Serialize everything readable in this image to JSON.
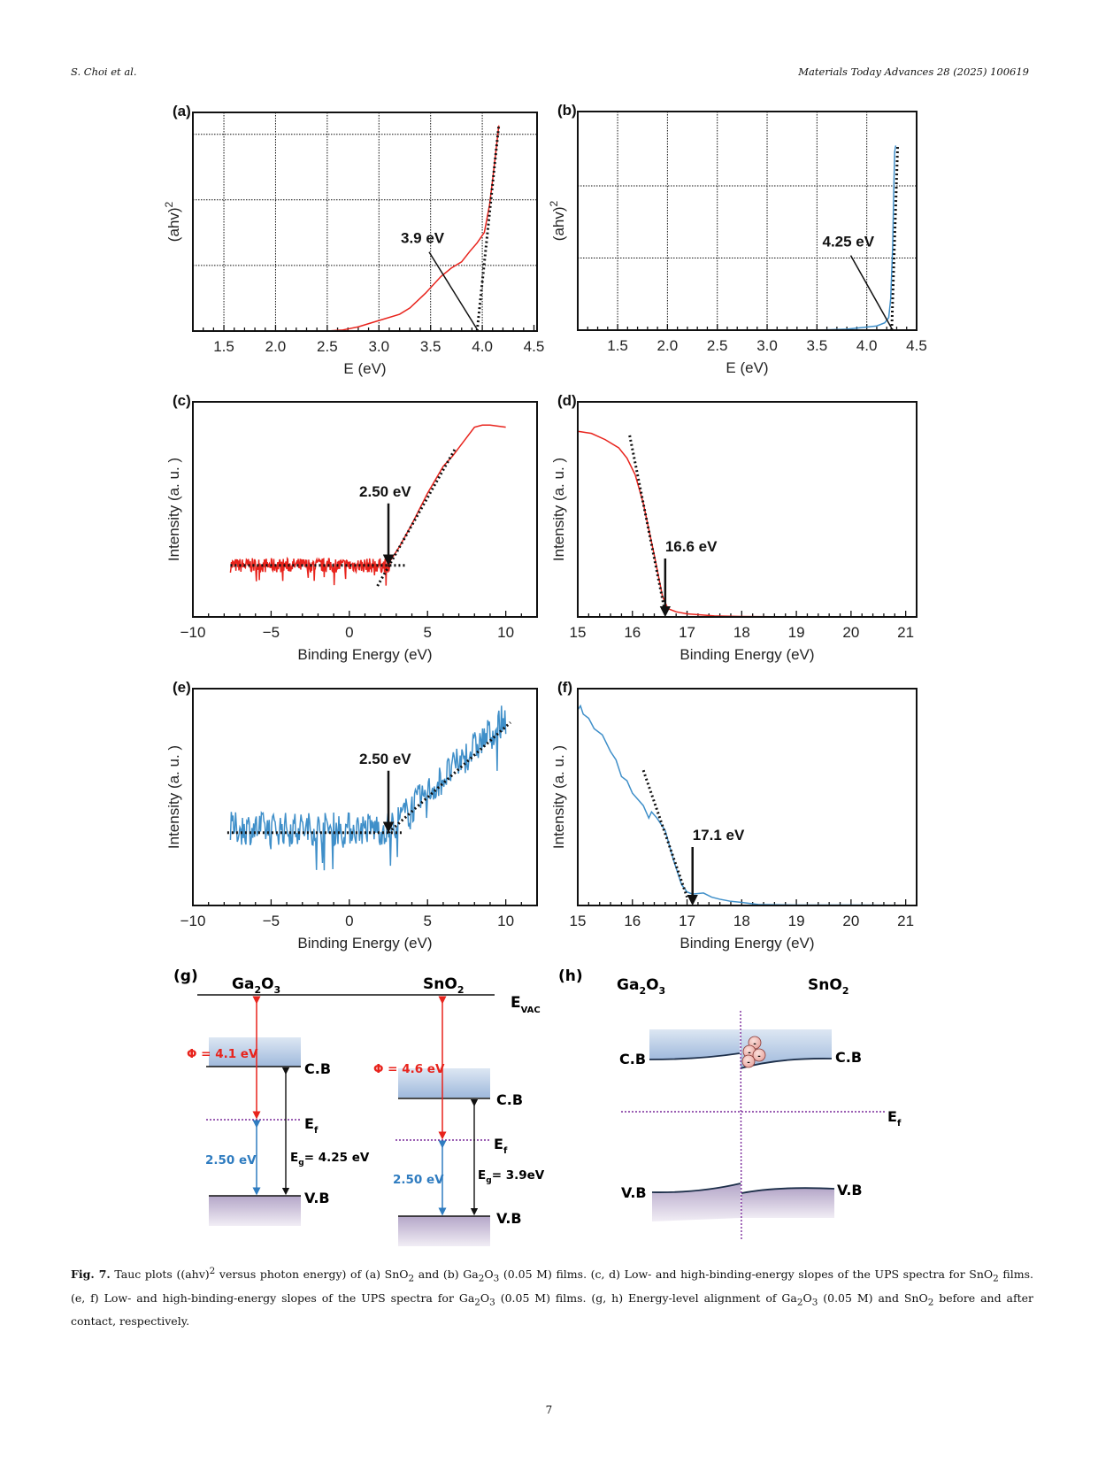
{
  "header": {
    "authors": "S. Choi et al.",
    "journal": "Materials Today Advances 28 (2025) 100619"
  },
  "colors": {
    "sno2_curve": "#e8231c",
    "ga2o3_curve": "#3f8fc9",
    "workfunction": "#e8231c",
    "valence_gap": "#2f7cc0",
    "fermi_line": "#7a2a9a",
    "cb_fill": "#a9c2e0",
    "vb_fill": "#b7a8c9"
  },
  "chart_data": [
    {
      "panel": "(a)",
      "type": "line",
      "xlabel": "E (eV)",
      "ylabel": "(ahv)",
      "ylabel_sup": "2",
      "xlim": [
        1.2,
        4.53
      ],
      "ylim": [
        0,
        1.0
      ],
      "xticks": [
        "1.5",
        "2.0",
        "2.5",
        "3.0",
        "3.5",
        "4.0",
        "4.5"
      ],
      "xtick_values": [
        1.5,
        2.0,
        2.5,
        3.0,
        3.5,
        4.0,
        4.5
      ],
      "xgrid": [
        1.5,
        2.0,
        2.5,
        3.0,
        3.5,
        4.0
      ],
      "ygrid": [
        0.3,
        0.6,
        0.9
      ],
      "series_color": "sno2",
      "x": [
        1.5,
        2.0,
        2.5,
        2.65,
        2.8,
        3.0,
        3.2,
        3.3,
        3.45,
        3.6,
        3.7,
        3.8,
        3.88,
        3.95,
        4.02,
        4.07,
        4.1,
        4.13,
        4.16
      ],
      "y": [
        0.0,
        0.0,
        0.0,
        0.005,
        0.02,
        0.05,
        0.08,
        0.11,
        0.18,
        0.26,
        0.3,
        0.33,
        0.38,
        0.42,
        0.47,
        0.6,
        0.72,
        0.85,
        0.98
      ],
      "fit_line": {
        "x": [
          3.95,
          4.16
        ],
        "y": [
          0.0,
          0.98
        ]
      },
      "annotation": {
        "text": "3.9 eV",
        "x": 3.95,
        "y": 0.0,
        "label_x": 3.4,
        "label_y": 0.41
      }
    },
    {
      "panel": "(b)",
      "type": "line",
      "xlabel": "E (eV)",
      "ylabel": "(ahv)",
      "ylabel_sup": "2",
      "xlim": [
        1.1,
        4.5
      ],
      "ylim": [
        0,
        1.0
      ],
      "xticks": [
        "1.5",
        "2.0",
        "2.5",
        "3.0",
        "3.5",
        "4.0",
        "4.5"
      ],
      "xtick_values": [
        1.5,
        2.0,
        2.5,
        3.0,
        3.5,
        4.0,
        4.5
      ],
      "xgrid": [
        1.5,
        2.0,
        2.5,
        3.0,
        3.5,
        4.0
      ],
      "ygrid": [
        0.33,
        0.66
      ],
      "series_color": "ga2o3",
      "x": [
        3.5,
        3.8,
        4.0,
        4.1,
        4.18,
        4.22,
        4.24,
        4.26,
        4.27,
        4.28,
        4.29
      ],
      "y": [
        0.0,
        0.005,
        0.015,
        0.02,
        0.035,
        0.06,
        0.15,
        0.4,
        0.65,
        0.85,
        0.88
      ],
      "fit_line": {
        "x": [
          4.25,
          4.31
        ],
        "y": [
          0.0,
          0.88
        ]
      },
      "annotation": {
        "text": "4.25 eV",
        "x": 4.25,
        "y": 0.0,
        "label_x": 3.75,
        "label_y": 0.39
      }
    },
    {
      "panel": "(c)",
      "type": "line",
      "xlabel": "Binding Energy (eV)",
      "ylabel": "Intensity (a. u. )",
      "xlim": [
        -10,
        12
      ],
      "ylim": [
        0,
        1.0
      ],
      "xticks": [
        "−10",
        "−5",
        "0",
        "5",
        "10"
      ],
      "xtick_values": [
        -10,
        -5,
        0,
        5,
        10
      ],
      "series_color": "sno2",
      "noisy_region": {
        "x_start": -7.6,
        "x_end": 2.6,
        "baseline": 0.25,
        "amplitude": 0.035
      },
      "x": [
        2.6,
        3.2,
        4.0,
        5.0,
        6.0,
        6.6,
        7.3,
        8.0,
        8.5,
        9.0,
        10.0
      ],
      "y": [
        0.27,
        0.34,
        0.45,
        0.6,
        0.73,
        0.78,
        0.85,
        0.92,
        0.93,
        0.93,
        0.92
      ],
      "baseline_fit": {
        "x": [
          -7.6,
          3.6
        ],
        "y": [
          0.25,
          0.25
        ]
      },
      "slope_fit": {
        "x": [
          1.8,
          6.8
        ],
        "y": [
          0.15,
          0.82
        ]
      },
      "annotation": {
        "text": "2.50 eV",
        "x": 2.5,
        "y": 0.25
      }
    },
    {
      "panel": "(d)",
      "type": "line",
      "xlabel": "Binding Energy (eV)",
      "ylabel": "Intensity (a. u. )",
      "xlim": [
        15,
        21.2
      ],
      "ylim": [
        0,
        1.0
      ],
      "xticks": [
        "15",
        "16",
        "17",
        "18",
        "19",
        "20",
        "21"
      ],
      "xtick_values": [
        15,
        16,
        17,
        18,
        19,
        20,
        21
      ],
      "series_color": "sno2",
      "x": [
        15.0,
        15.25,
        15.5,
        15.75,
        15.9,
        16.05,
        16.2,
        16.4,
        16.55,
        16.65,
        16.8,
        17.0,
        17.5,
        18.0,
        19.0,
        21.2
      ],
      "y": [
        0.9,
        0.89,
        0.86,
        0.82,
        0.77,
        0.69,
        0.55,
        0.3,
        0.1,
        0.04,
        0.025,
        0.015,
        0.005,
        0.002,
        0.0,
        0.0
      ],
      "slope_fit": {
        "x": [
          15.95,
          16.6
        ],
        "y": [
          0.88,
          0.02
        ]
      },
      "annotation": {
        "text": "16.6 eV",
        "x": 16.6,
        "y": 0.0
      }
    },
    {
      "panel": "(e)",
      "type": "line",
      "xlabel": "Binding Energy (eV)",
      "ylabel": "Intensity (a. u. )",
      "xlim": [
        -10,
        12
      ],
      "ylim": [
        0,
        1.0
      ],
      "xticks": [
        "−10",
        "−5",
        "0",
        "5",
        "10"
      ],
      "xtick_values": [
        -10,
        -5,
        0,
        5,
        10
      ],
      "series_color": "ga2o3",
      "noisy_region": {
        "x_start": -7.6,
        "x_end": 10.0,
        "baseline": 0.37,
        "amplitude": 0.08,
        "knee": 2.6,
        "end_value": 0.9
      },
      "baseline_fit": {
        "x": [
          -7.8,
          3.5
        ],
        "y": [
          0.35,
          0.35
        ]
      },
      "slope_fit": {
        "x": [
          2.5,
          10.3
        ],
        "y": [
          0.35,
          0.88
        ]
      },
      "annotation": {
        "text": "2.50 eV",
        "x": 2.5,
        "y": 0.35
      }
    },
    {
      "panel": "(f)",
      "type": "line",
      "xlabel": "Binding Energy (eV)",
      "ylabel": "Intensity (a. u. )",
      "xlim": [
        15,
        21.2
      ],
      "ylim": [
        0,
        1.0
      ],
      "xticks": [
        "15",
        "16",
        "17",
        "18",
        "19",
        "20",
        "21"
      ],
      "xtick_values": [
        15,
        16,
        17,
        18,
        19,
        20,
        21
      ],
      "series_color": "ga2o3",
      "x": [
        15.0,
        15.05,
        15.1,
        15.2,
        15.3,
        15.45,
        15.6,
        15.7,
        15.8,
        15.9,
        16.0,
        16.1,
        16.2,
        16.3,
        16.35,
        16.45,
        16.6,
        16.75,
        16.9,
        17.0,
        17.1,
        17.3,
        17.45,
        17.6,
        17.8,
        18.0,
        18.3,
        19.0,
        20.0,
        21.2
      ],
      "y": [
        0.94,
        0.96,
        0.92,
        0.9,
        0.85,
        0.82,
        0.74,
        0.7,
        0.62,
        0.6,
        0.54,
        0.51,
        0.48,
        0.42,
        0.45,
        0.42,
        0.36,
        0.22,
        0.1,
        0.065,
        0.055,
        0.06,
        0.04,
        0.03,
        0.02,
        0.015,
        0.005,
        0.002,
        0.002,
        0.001
      ],
      "slope_fit": {
        "x": [
          16.2,
          17.0
        ],
        "y": [
          0.65,
          0.04
        ]
      },
      "annotation": {
        "text": "17.1 eV",
        "x": 17.1,
        "y": 0.0
      }
    }
  ],
  "panels": {
    "a": "(a)",
    "b": "(b)",
    "c": "(c)",
    "d": "(d)",
    "e": "(e)",
    "f": "(f)",
    "g": "(g)",
    "h": "(h)"
  },
  "diagram_g": {
    "left_material": {
      "base": "Ga",
      "sub1": "2",
      "mid": "O",
      "sub2": "3"
    },
    "right_material": {
      "base": "SnO",
      "sub1": "2"
    },
    "evac": {
      "base": "E",
      "sub": "VAC"
    },
    "left": {
      "phi": "Φ = 4.1 eV",
      "cb": "C.B",
      "ef": "E",
      "ef_sub": "f",
      "vb": "V.B",
      "ef_to_vb": "2.50 eV",
      "eg_base": "E",
      "eg_sub": "g",
      "eg_val": "= 4.25 eV"
    },
    "right": {
      "phi": "Φ = 4.6 eV",
      "cb": "C.B",
      "ef": "E",
      "ef_sub": "f",
      "vb": "V.B",
      "ef_to_vb": "2.50 eV",
      "eg_base": "E",
      "eg_sub": "g",
      "eg_val": "= 3.9eV"
    }
  },
  "diagram_h": {
    "left_material": {
      "base": "Ga",
      "sub1": "2",
      "mid": "O",
      "sub2": "3"
    },
    "right_material": {
      "base": "SnO",
      "sub1": "2"
    },
    "cb_left": "C.B",
    "cb_right": "C.B",
    "vb_left": "V.B",
    "vb_right": "V.B",
    "ef": "E",
    "ef_sub": "f",
    "electron": "-"
  },
  "caption": {
    "label": "Fig. 7.",
    "line1_a": " Tauc plots ((ahv)",
    "sup2": "2",
    "line1_b": " versus photon energy) of (a) SnO",
    "s2": "2",
    "line1_c": " and (b) Ga",
    "s3": "2",
    "line1_d": "O",
    "s4": "3",
    "line1_e": " (0.05 M) films. (c, d) Low- and high-binding-energy slopes of the UPS spectra for SnO",
    "s5": "2",
    "line2_a": " films. (e, f) Low- and high-binding-energy slopes of the UPS spectra for Ga",
    "s6": "2",
    "line2_b": "O",
    "s7": "3",
    "line2_c": " (0.05 M) films. (g, h) Energy-level alignment of Ga",
    "s8": "2",
    "line2_d": "O",
    "s9": "3",
    "line2_e": " (0.05 M) and SnO",
    "s10": "2",
    "line2_f": " before and after contact, respectively."
  },
  "page_number": "7"
}
